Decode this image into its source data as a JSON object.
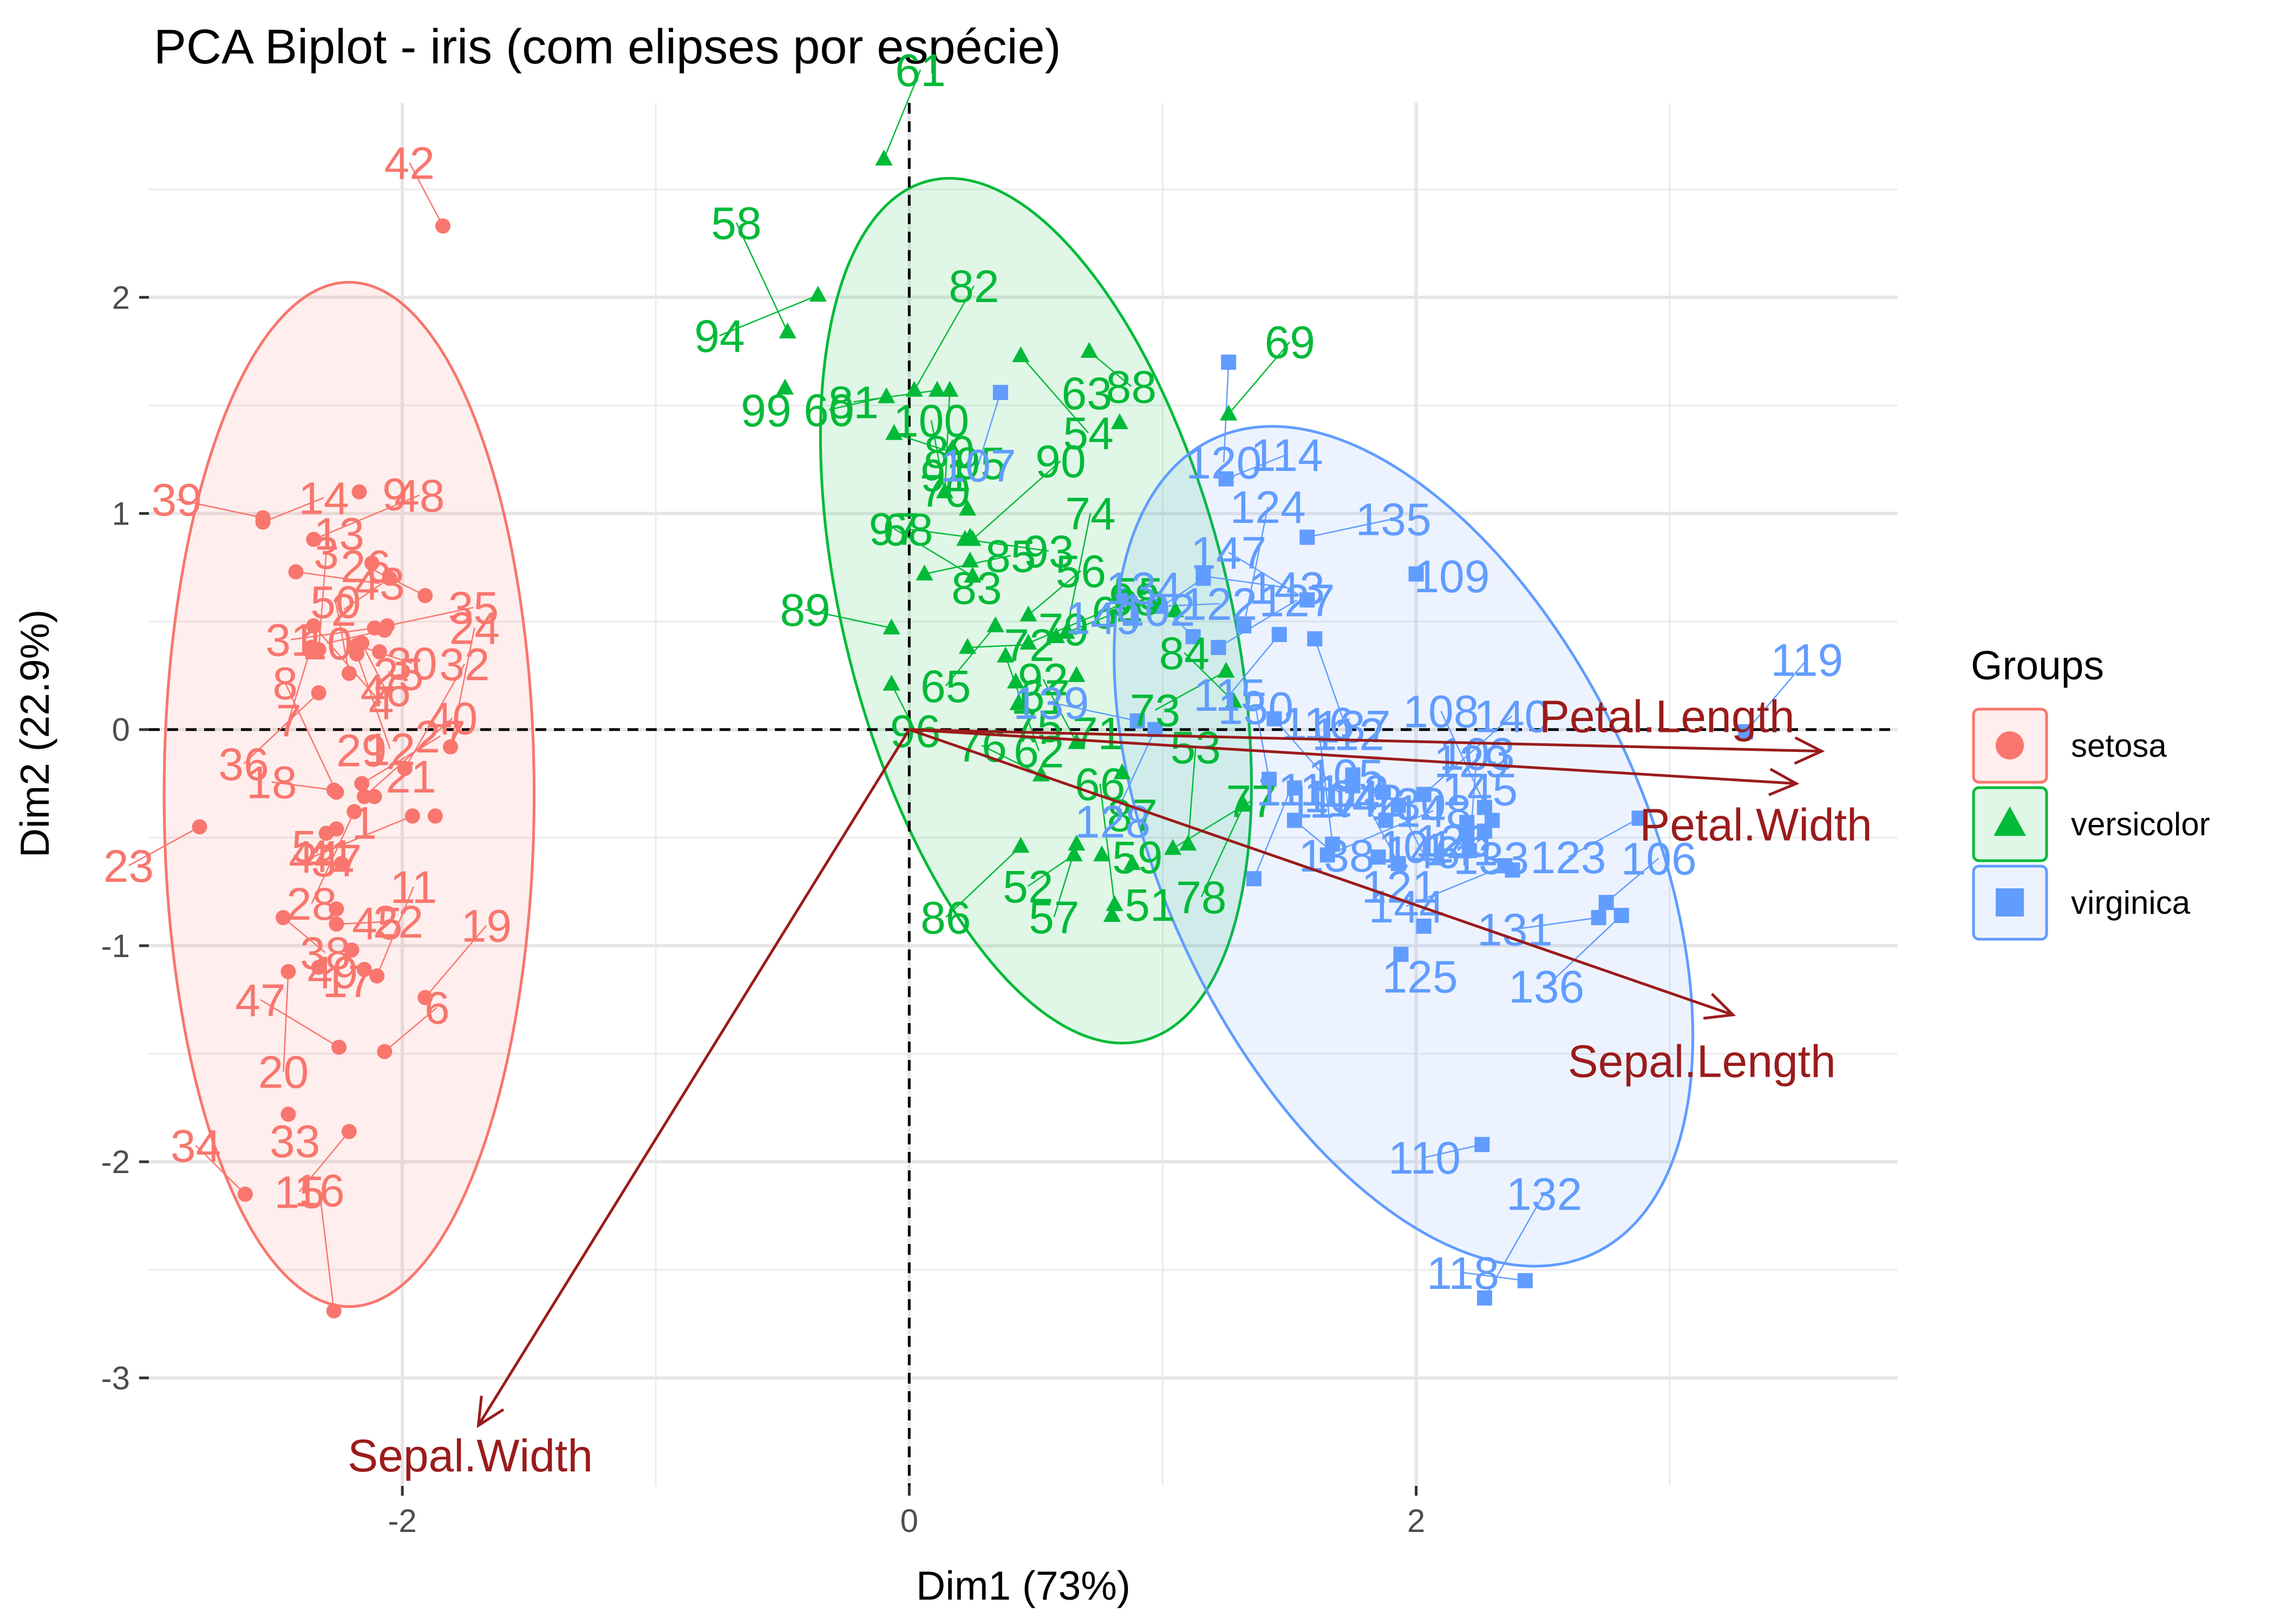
{
  "chart_data": {
    "type": "scatter",
    "title": "PCA Biplot - iris (com elipses por espécie)",
    "xlabel": "Dim1 (73%)",
    "ylabel": "Dim2 (22.9%)",
    "xlim": [
      -3.0,
      3.9
    ],
    "ylim": [
      -3.5,
      2.9
    ],
    "x_ticks": [
      -2,
      0,
      2
    ],
    "y_ticks": [
      -3,
      -2,
      -1,
      0,
      1,
      2
    ],
    "x_tick_labels": [
      "-2",
      "0",
      "2"
    ],
    "y_tick_labels": [
      "-3",
      "-2",
      "-1",
      "0",
      "1",
      "2"
    ],
    "grid": true,
    "legend_position": "right",
    "legend_title": "Groups",
    "colors": {
      "setosa": "#F8766D",
      "versicolor": "#00BA38",
      "virginica": "#619CFF",
      "variables": "#9B1B1B",
      "reference_line": "#000000"
    },
    "series": [
      {
        "name": "setosa",
        "marker": "circle",
        "color": "#F8766D",
        "points": [
          {
            "id": "1",
            "x": -2.3,
            "y": -0.48
          },
          {
            "id": "2",
            "x": -2.05,
            "y": 0.7
          },
          {
            "id": "3",
            "x": -2.33,
            "y": 0.37
          },
          {
            "id": "4",
            "x": -2.35,
            "y": 0.48
          },
          {
            "id": "5",
            "x": -2.24,
            "y": -0.62
          },
          {
            "id": "6",
            "x": -2.07,
            "y": -1.49
          },
          {
            "id": "7",
            "x": -2.36,
            "y": 0.38
          },
          {
            "id": "8",
            "x": -2.26,
            "y": -0.29
          },
          {
            "id": "9",
            "x": -2.17,
            "y": 1.1
          },
          {
            "id": "10",
            "x": -2.07,
            "y": 0.46
          },
          {
            "id": "11",
            "x": -2.1,
            "y": -1.14
          },
          {
            "id": "12",
            "x": -2.18,
            "y": 0.35
          },
          {
            "id": "13",
            "x": -2.12,
            "y": 0.77
          },
          {
            "id": "14",
            "x": -2.55,
            "y": 0.96
          },
          {
            "id": "15",
            "x": -2.21,
            "y": -1.86
          },
          {
            "id": "16",
            "x": -2.27,
            "y": -2.69
          },
          {
            "id": "17",
            "x": -2.33,
            "y": -1.1
          },
          {
            "id": "18",
            "x": -2.27,
            "y": -0.28
          },
          {
            "id": "19",
            "x": -1.91,
            "y": -1.24
          },
          {
            "id": "20",
            "x": -2.45,
            "y": -1.12
          },
          {
            "id": "21",
            "x": -1.87,
            "y": -0.4
          },
          {
            "id": "22",
            "x": -2.26,
            "y": -0.9
          },
          {
            "id": "23",
            "x": -2.8,
            "y": -0.45
          },
          {
            "id": "24",
            "x": -1.81,
            "y": -0.08
          },
          {
            "id": "25",
            "x": -2.09,
            "y": 0.36
          },
          {
            "id": "26",
            "x": -1.91,
            "y": 0.62
          },
          {
            "id": "27",
            "x": -2.16,
            "y": -0.25
          },
          {
            "id": "28",
            "x": -2.19,
            "y": -0.38
          },
          {
            "id": "29",
            "x": -2.11,
            "y": -0.31
          },
          {
            "id": "30",
            "x": -2.18,
            "y": 0.39
          },
          {
            "id": "31",
            "x": -2.11,
            "y": 0.47
          },
          {
            "id": "32",
            "x": -1.99,
            "y": -0.18
          },
          {
            "id": "33",
            "x": -2.45,
            "y": -1.78
          },
          {
            "id": "34",
            "x": -2.62,
            "y": -2.15
          },
          {
            "id": "35",
            "x": -2.06,
            "y": 0.48
          },
          {
            "id": "36",
            "x": -2.33,
            "y": 0.17
          },
          {
            "id": "37",
            "x": -2.26,
            "y": -0.83
          },
          {
            "id": "38",
            "x": -2.47,
            "y": -0.87
          },
          {
            "id": "39",
            "x": -2.55,
            "y": 0.98
          },
          {
            "id": "40",
            "x": -2.15,
            "y": -0.31
          },
          {
            "id": "41",
            "x": -2.26,
            "y": -0.46
          },
          {
            "id": "42",
            "x": -1.84,
            "y": 2.33
          },
          {
            "id": "43",
            "x": -2.42,
            "y": 0.73
          },
          {
            "id": "44",
            "x": -1.96,
            "y": -0.4
          },
          {
            "id": "45",
            "x": -2.15,
            "y": -1.11
          },
          {
            "id": "46",
            "x": -2.16,
            "y": 0.4
          },
          {
            "id": "47",
            "x": -2.25,
            "y": -1.47
          },
          {
            "id": "48",
            "x": -2.35,
            "y": 0.88
          },
          {
            "id": "49",
            "x": -2.2,
            "y": -1.02
          },
          {
            "id": "50",
            "x": -2.21,
            "y": 0.26
          }
        ]
      },
      {
        "name": "versicolor",
        "marker": "triangle",
        "color": "#00BA38",
        "points": [
          {
            "id": "51",
            "x": 0.8,
            "y": -0.86
          },
          {
            "id": "52",
            "x": 0.65,
            "y": -0.58
          },
          {
            "id": "53",
            "x": 1.1,
            "y": -0.53
          },
          {
            "id": "54",
            "x": 0.44,
            "y": 1.73
          },
          {
            "id": "55",
            "x": 1.05,
            "y": 0.55
          },
          {
            "id": "56",
            "x": 0.47,
            "y": 0.53
          },
          {
            "id": "57",
            "x": 0.66,
            "y": -0.53
          },
          {
            "id": "58",
            "x": -0.48,
            "y": 1.84
          },
          {
            "id": "59",
            "x": 0.76,
            "y": -0.58
          },
          {
            "id": "60",
            "x": -0.09,
            "y": 1.54
          },
          {
            "id": "61",
            "x": -0.1,
            "y": 2.64
          },
          {
            "id": "62",
            "x": 0.38,
            "y": 0.34
          },
          {
            "id": "63",
            "x": 0.83,
            "y": 1.42
          },
          {
            "id": "64",
            "x": 0.58,
            "y": 0.43
          },
          {
            "id": "65",
            "x": 0.34,
            "y": 0.48
          },
          {
            "id": "66",
            "x": 0.81,
            "y": -0.81
          },
          {
            "id": "67",
            "x": 0.42,
            "y": 0.22
          },
          {
            "id": "68",
            "x": 0.24,
            "y": 0.89
          },
          {
            "id": "69",
            "x": 1.26,
            "y": 1.46
          },
          {
            "id": "70",
            "x": 0.16,
            "y": 1.57
          },
          {
            "id": "71",
            "x": 0.84,
            "y": -0.2
          },
          {
            "id": "72",
            "x": 0.23,
            "y": 0.38
          },
          {
            "id": "73",
            "x": 1.25,
            "y": 0.27
          },
          {
            "id": "74",
            "x": 0.62,
            "y": 0.45
          },
          {
            "id": "75",
            "x": 0.43,
            "y": 0.12
          },
          {
            "id": "76",
            "x": 0.52,
            "y": -0.21
          },
          {
            "id": "77",
            "x": 1.04,
            "y": -0.55
          },
          {
            "id": "78",
            "x": 1.32,
            "y": -0.35
          },
          {
            "id": "79",
            "x": 0.66,
            "y": 0.25
          },
          {
            "id": "80",
            "x": -0.06,
            "y": 1.37
          },
          {
            "id": "81",
            "x": 0.11,
            "y": 1.57
          },
          {
            "id": "82",
            "x": 0.02,
            "y": 1.57
          },
          {
            "id": "83",
            "x": 0.24,
            "y": 0.78
          },
          {
            "id": "84",
            "x": 1.28,
            "y": 0.13
          },
          {
            "id": "85",
            "x": 0.06,
            "y": 0.72
          },
          {
            "id": "86",
            "x": 0.44,
            "y": -0.54
          },
          {
            "id": "87",
            "x": 0.88,
            "y": -0.62
          },
          {
            "id": "88",
            "x": 0.71,
            "y": 1.75
          },
          {
            "id": "89",
            "x": -0.07,
            "y": 0.47
          },
          {
            "id": "90",
            "x": 0.25,
            "y": 0.88
          },
          {
            "id": "91",
            "x": 0.17,
            "y": 1.3
          },
          {
            "id": "92",
            "x": 0.66,
            "y": -0.06
          },
          {
            "id": "93",
            "x": 0.22,
            "y": 0.88
          },
          {
            "id": "94",
            "x": -0.36,
            "y": 2.01
          },
          {
            "id": "95",
            "x": 0.23,
            "y": 1.02
          },
          {
            "id": "96",
            "x": -0.07,
            "y": 0.21
          },
          {
            "id": "97",
            "x": 0.25,
            "y": 0.71
          },
          {
            "id": "98",
            "x": 0.47,
            "y": 0.4
          },
          {
            "id": "99",
            "x": -0.49,
            "y": 1.58
          },
          {
            "id": "100",
            "x": 0.14,
            "y": 1.1
          }
        ]
      },
      {
        "name": "virginica",
        "marker": "square",
        "color": "#619CFF",
        "points": [
          {
            "id": "101",
            "x": 1.85,
            "y": -0.59
          },
          {
            "id": "102",
            "x": 1.16,
            "y": 0.7
          },
          {
            "id": "103",
            "x": 2.21,
            "y": -0.56
          },
          {
            "id": "104",
            "x": 1.44,
            "y": 0.05
          },
          {
            "id": "105",
            "x": 1.87,
            "y": -0.29
          },
          {
            "id": "106",
            "x": 2.75,
            "y": -0.8
          },
          {
            "id": "107",
            "x": 0.36,
            "y": 1.56
          },
          {
            "id": "108",
            "x": 2.3,
            "y": -0.42
          },
          {
            "id": "109",
            "x": 2.0,
            "y": 0.72
          },
          {
            "id": "110",
            "x": 2.26,
            "y": -1.92
          },
          {
            "id": "111",
            "x": 1.36,
            "y": -0.69
          },
          {
            "id": "112",
            "x": 1.6,
            "y": 0.42
          },
          {
            "id": "113",
            "x": 1.88,
            "y": -0.42
          },
          {
            "id": "114",
            "x": 1.25,
            "y": 1.16
          },
          {
            "id": "115",
            "x": 1.46,
            "y": 0.44
          },
          {
            "id": "116",
            "x": 1.67,
            "y": -0.53
          },
          {
            "id": "117",
            "x": 1.52,
            "y": -0.27
          },
          {
            "id": "118",
            "x": 2.43,
            "y": -2.55
          },
          {
            "id": "119",
            "x": 3.3,
            "y": -0.01
          },
          {
            "id": "120",
            "x": 1.26,
            "y": 1.7
          },
          {
            "id": "121",
            "x": 2.03,
            "y": -0.91
          },
          {
            "id": "122",
            "x": 0.98,
            "y": 0.57
          },
          {
            "id": "123",
            "x": 2.88,
            "y": -0.41
          },
          {
            "id": "124",
            "x": 1.32,
            "y": 0.48
          },
          {
            "id": "125",
            "x": 1.94,
            "y": -1.04
          },
          {
            "id": "126",
            "x": 2.38,
            "y": -0.65
          },
          {
            "id": "127",
            "x": 1.22,
            "y": 0.38
          },
          {
            "id": "128",
            "x": 0.97,
            "y": 0.0
          },
          {
            "id": "129",
            "x": 2.27,
            "y": -0.36
          },
          {
            "id": "130",
            "x": 1.75,
            "y": -0.26
          },
          {
            "id": "131",
            "x": 2.72,
            "y": -0.87
          },
          {
            "id": "132",
            "x": 2.27,
            "y": -2.63
          },
          {
            "id": "133",
            "x": 2.27,
            "y": -0.47
          },
          {
            "id": "134",
            "x": 1.12,
            "y": 0.43
          },
          {
            "id": "135",
            "x": 1.57,
            "y": 0.89
          },
          {
            "id": "136",
            "x": 2.81,
            "y": -0.86
          },
          {
            "id": "137",
            "x": 1.75,
            "y": -0.21
          },
          {
            "id": "138",
            "x": 1.52,
            "y": -0.42
          },
          {
            "id": "139",
            "x": 0.9,
            "y": 0.04
          },
          {
            "id": "140",
            "x": 2.03,
            "y": -0.3
          },
          {
            "id": "141",
            "x": 2.2,
            "y": -0.43
          },
          {
            "id": "142",
            "x": 1.93,
            "y": -0.62
          },
          {
            "id": "143",
            "x": 1.16,
            "y": 0.71
          },
          {
            "id": "144",
            "x": 2.35,
            "y": -0.63
          },
          {
            "id": "145",
            "x": 2.2,
            "y": -0.49
          },
          {
            "id": "146",
            "x": 1.93,
            "y": -0.35
          },
          {
            "id": "147",
            "x": 1.57,
            "y": 0.6
          },
          {
            "id": "148",
            "x": 1.65,
            "y": -0.58
          },
          {
            "id": "149",
            "x": 0.84,
            "y": 0.62
          },
          {
            "id": "150",
            "x": 1.42,
            "y": -0.23
          }
        ]
      }
    ],
    "ellipses": [
      {
        "group": "setosa",
        "cx": -2.21,
        "cy": -0.3,
        "rx": 0.73,
        "ry": 2.37,
        "angle": 0
      },
      {
        "group": "versicolor",
        "cx": 0.5,
        "cy": 0.55,
        "rx": 0.76,
        "ry": 2.05,
        "angle": -14
      },
      {
        "group": "virginica",
        "cx": 1.95,
        "cy": -0.54,
        "rx": 0.95,
        "ry": 2.08,
        "angle": -25
      }
    ],
    "variables": [
      {
        "name": "Petal.Length",
        "x": 3.6,
        "y": -0.1
      },
      {
        "name": "Petal.Width",
        "x": 3.5,
        "y": -0.25
      },
      {
        "name": "Sepal.Length",
        "x": 3.25,
        "y": -1.32
      },
      {
        "name": "Sepal.Width",
        "x": -1.7,
        "y": -3.22
      }
    ],
    "legend": [
      {
        "label": "setosa",
        "marker": "circle",
        "color": "#F8766D"
      },
      {
        "label": "versicolor",
        "marker": "triangle",
        "color": "#00BA38"
      },
      {
        "label": "virginica",
        "marker": "square",
        "color": "#619CFF"
      }
    ]
  }
}
